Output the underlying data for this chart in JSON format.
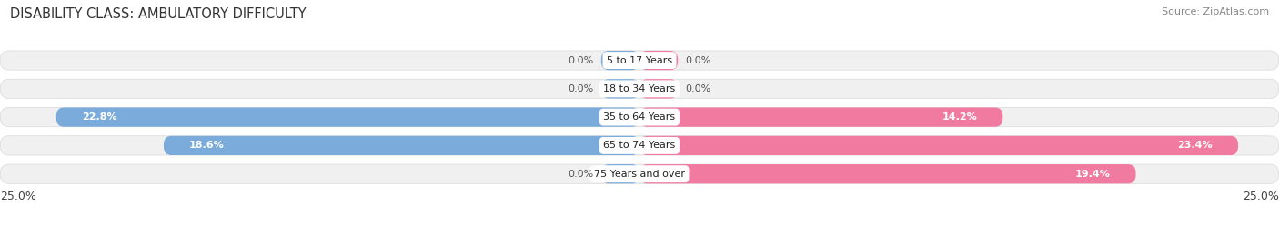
{
  "title": "DISABILITY CLASS: AMBULATORY DIFFICULTY",
  "source": "Source: ZipAtlas.com",
  "categories": [
    "5 to 17 Years",
    "18 to 34 Years",
    "35 to 64 Years",
    "65 to 74 Years",
    "75 Years and over"
  ],
  "male_values": [
    0.0,
    0.0,
    22.8,
    18.6,
    0.0
  ],
  "female_values": [
    0.0,
    0.0,
    14.2,
    23.4,
    19.4
  ],
  "male_color": "#7aabdb",
  "female_color": "#f07aa0",
  "xlim": 25.0,
  "min_bar_width": 1.5,
  "bar_height": 0.68,
  "label_color_inside": "#ffffff",
  "label_color_outside": "#555555",
  "title_fontsize": 10.5,
  "source_fontsize": 8,
  "tick_fontsize": 9,
  "category_fontsize": 8,
  "value_fontsize": 8,
  "legend_fontsize": 9,
  "background_color": "#ffffff"
}
